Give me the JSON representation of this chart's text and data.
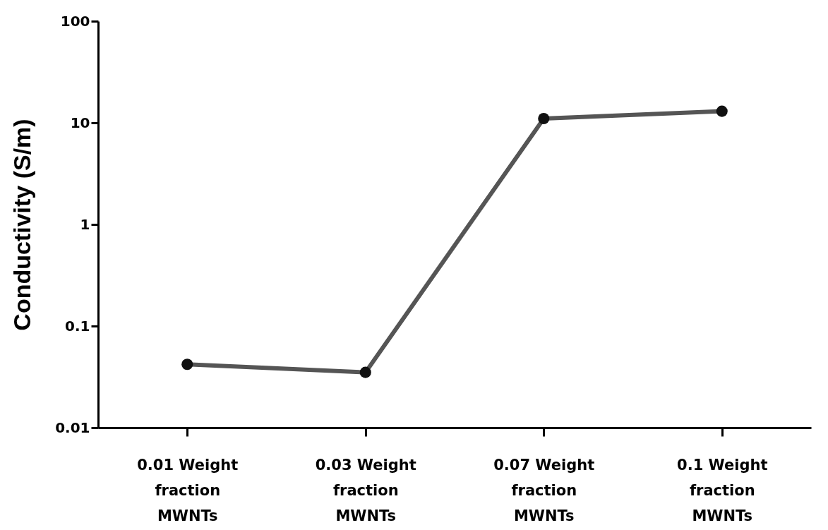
{
  "chart_data": {
    "type": "line",
    "ylabel": "Conductivity (S/m)",
    "categories": [
      "0.01 Weight fraction MWNTs",
      "0.03 Weight fraction MWNTs",
      "0.07 Weight fraction MWNTs",
      "0.1 Weight fraction MWNTs"
    ],
    "series": [
      {
        "color": "#555555",
        "values": [
          0.042,
          0.035,
          11,
          13
        ]
      }
    ],
    "log": "y",
    "ylim": [
      0.01,
      100
    ],
    "yticks": [
      0.01,
      0.1,
      1,
      10,
      100
    ],
    "grid": false,
    "legend": false,
    "marker": "circle",
    "line_style": "solid"
  }
}
